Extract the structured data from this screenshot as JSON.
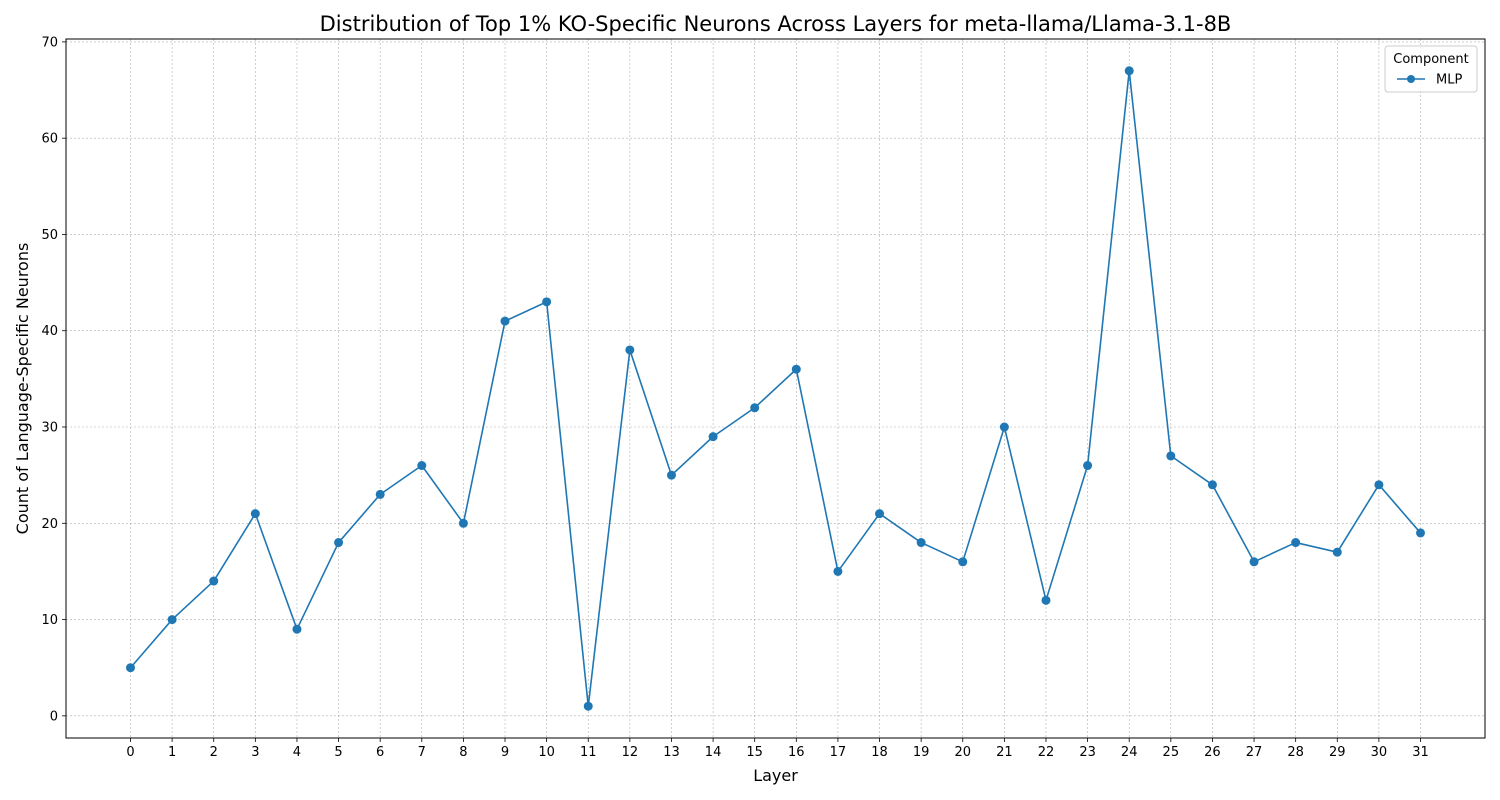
{
  "chart_data": {
    "type": "line",
    "title": "Distribution of Top 1% KO-Specific Neurons Across Layers for meta-llama/Llama-3.1-8B",
    "xlabel": "Layer",
    "ylabel": "Count of Language-Specific Neurons",
    "x": [
      0,
      1,
      2,
      3,
      4,
      5,
      6,
      7,
      8,
      9,
      10,
      11,
      12,
      13,
      14,
      15,
      16,
      17,
      18,
      19,
      20,
      21,
      22,
      23,
      24,
      25,
      26,
      27,
      28,
      29,
      30,
      31
    ],
    "x_tick_labels": [
      "0",
      "1",
      "2",
      "3",
      "4",
      "5",
      "6",
      "7",
      "8",
      "9",
      "10",
      "11",
      "12",
      "13",
      "14",
      "15",
      "16",
      "17",
      "18",
      "19",
      "20",
      "21",
      "22",
      "23",
      "24",
      "25",
      "26",
      "27",
      "28",
      "29",
      "30",
      "31"
    ],
    "y_ticks": [
      0,
      10,
      20,
      30,
      40,
      50,
      60,
      70
    ],
    "y_tick_labels": [
      "0",
      "10",
      "20",
      "30",
      "40",
      "50",
      "60",
      "70"
    ],
    "xlim": [
      -1.55,
      32.55
    ],
    "ylim": [
      -2.3,
      70.3
    ],
    "grid": true,
    "legend": {
      "title": "Component",
      "placement": "top-right"
    },
    "series": [
      {
        "name": "MLP",
        "color": "#1f77b4",
        "marker": "circle",
        "values": [
          5,
          10,
          14,
          21,
          9,
          18,
          23,
          26,
          20,
          41,
          43,
          1,
          38,
          25,
          29,
          32,
          36,
          15,
          21,
          18,
          16,
          30,
          12,
          26,
          67,
          27,
          24,
          16,
          18,
          17,
          24,
          19
        ]
      }
    ]
  }
}
